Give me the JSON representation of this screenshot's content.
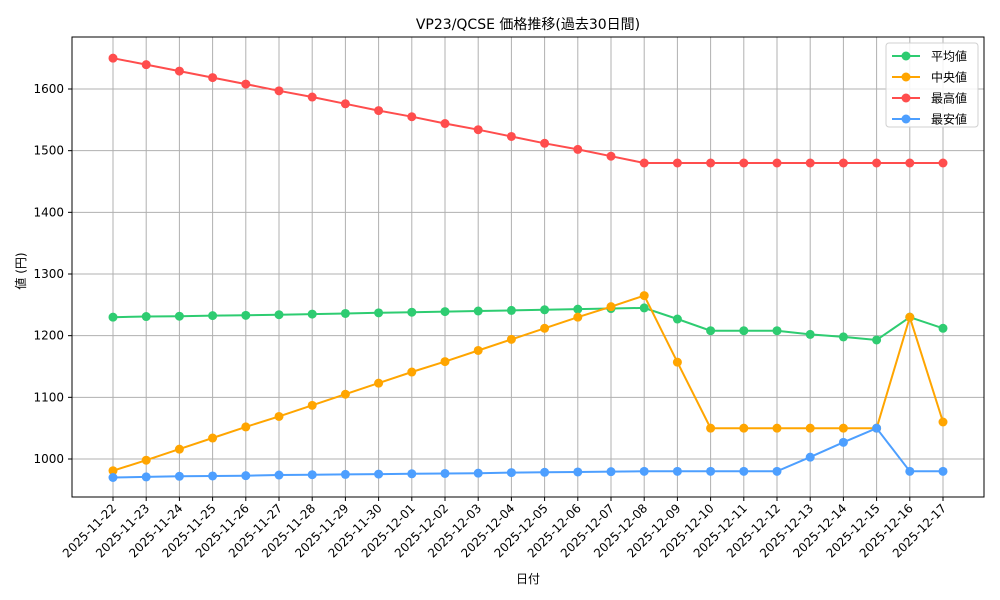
{
  "chart_data": {
    "type": "line",
    "title": "VP23/QCSE 価格推移(過去30日間)",
    "xlabel": "日付",
    "ylabel": "値 (円)",
    "ylim": [
      935,
      1685
    ],
    "yticks": [
      1000,
      1100,
      1200,
      1300,
      1400,
      1500,
      1600
    ],
    "grid": true,
    "legend_position": "upper right",
    "categories": [
      "2025-11-22",
      "2025-11-23",
      "2025-11-24",
      "2025-11-25",
      "2025-11-26",
      "2025-11-27",
      "2025-11-28",
      "2025-11-29",
      "2025-11-30",
      "2025-12-01",
      "2025-12-02",
      "2025-12-03",
      "2025-12-04",
      "2025-12-05",
      "2025-12-06",
      "2025-12-07",
      "2025-12-08",
      "2025-12-09",
      "2025-12-10",
      "2025-12-11",
      "2025-12-12",
      "2025-12-13",
      "2025-12-14",
      "2025-12-15",
      "2025-12-16",
      "2025-12-17"
    ],
    "series": [
      {
        "name": "平均値",
        "color": "#2ecc71",
        "values": [
          1230,
          1231,
          1231.5,
          1232.5,
          1233,
          1234,
          1235,
          1236,
          1237,
          1238,
          1239,
          1240,
          1241,
          1242,
          1243,
          1244,
          1245,
          1227,
          1208,
          1208,
          1208,
          1202,
          1198,
          1193,
          1230,
          1212
        ]
      },
      {
        "name": "中央値",
        "color": "#ffa500",
        "values": [
          981,
          998,
          1016,
          1034,
          1052,
          1069,
          1087,
          1105,
          1123,
          1141,
          1158,
          1176,
          1194,
          1212,
          1230,
          1247,
          1265,
          1157,
          1050,
          1050,
          1050,
          1050,
          1050,
          1050,
          1230,
          1060
        ]
      },
      {
        "name": "最高値",
        "color": "#ff4d4d",
        "values": [
          1650,
          1639.5,
          1629,
          1618.5,
          1608,
          1597,
          1587,
          1576,
          1565,
          1555,
          1544,
          1534,
          1523,
          1512,
          1502,
          1491,
          1480,
          1480,
          1480,
          1480,
          1480,
          1480,
          1480,
          1480,
          1480,
          1480
        ]
      },
      {
        "name": "最安値",
        "color": "#4d9fff",
        "values": [
          970,
          971,
          972,
          972.5,
          973,
          974,
          974.5,
          975,
          975.5,
          976,
          976.5,
          977,
          978,
          978.5,
          979,
          979.5,
          980,
          980,
          980,
          980,
          980,
          1003,
          1027,
          1050,
          980,
          980
        ]
      }
    ]
  }
}
